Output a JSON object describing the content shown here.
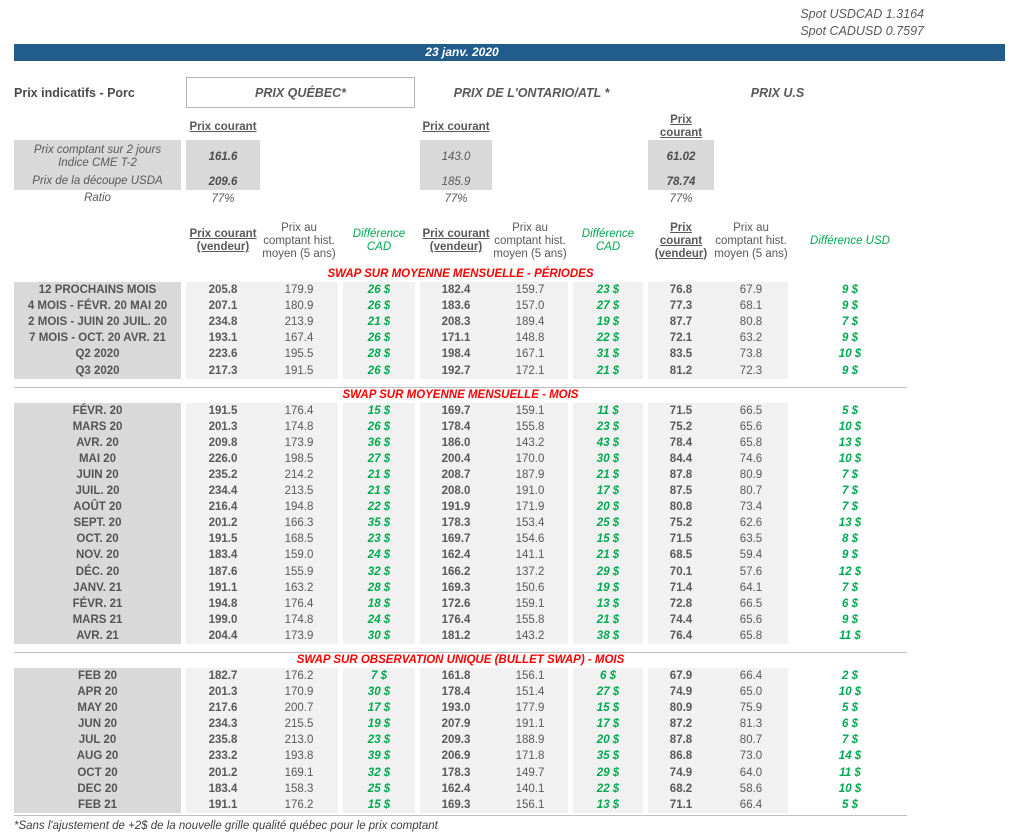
{
  "spot": {
    "usdcad": "Spot USDCAD 1.3164",
    "cadusd": "Spot CADUSD 0.7597"
  },
  "banner_date": "23 janv. 2020",
  "page_title": "Prix indicatifs - Porc",
  "region_titles": {
    "quebec": "PRIX QUÉBEC*",
    "ontario": "PRIX DE L'ONTARIO/ATL *",
    "us": "PRIX U.S"
  },
  "courant_header": "Prix courant",
  "spot_table": {
    "row1_label_line1": "Prix comptant sur 2 jours",
    "row1_label_line2": "Indice CME T-2",
    "row1": {
      "qc": "161.6",
      "on": "143.0",
      "us": "61.02"
    },
    "row2_label": "Prix de la découpe USDA",
    "row2": {
      "qc": "209.6",
      "on": "185.9",
      "us": "78.74"
    },
    "row3_label": "Ratio",
    "row3": {
      "qc": "77%",
      "on": "77%",
      "us": "77%"
    }
  },
  "column_headers": {
    "prix_courant_vendeur": "Prix courant (vendeur)",
    "prix_hist": "Prix au comptant hist. moyen (5 ans)",
    "difference_cad": "Différence CAD",
    "difference_usd": "Différence USD"
  },
  "colors": {
    "banner_blue": "#215C8C",
    "diff_green": "#00A94F",
    "section_red": "#FF0000",
    "label_gray": "#D9D9D9",
    "band_gray": "#F1F1F1"
  },
  "sections": [
    {
      "title": "SWAP SUR MOYENNE MENSUELLE - PÉRIODES",
      "rows": [
        [
          "12 PROCHAINS MOIS",
          "205.8",
          "179.9",
          "26 $",
          "182.4",
          "159.7",
          "23 $",
          "76.8",
          "67.9",
          "9 $"
        ],
        [
          "4 MOIS - FÉVR. 20 MAI 20",
          "207.1",
          "180.9",
          "26 $",
          "183.6",
          "157.0",
          "27 $",
          "77.3",
          "68.1",
          "9 $"
        ],
        [
          "2 MOIS - JUIN 20 JUIL. 20",
          "234.8",
          "213.9",
          "21 $",
          "208.3",
          "189.4",
          "19 $",
          "87.7",
          "80.8",
          "7 $"
        ],
        [
          "7 MOIS - OCT. 20 AVR. 21",
          "193.1",
          "167.4",
          "26 $",
          "171.1",
          "148.8",
          "22 $",
          "72.1",
          "63.2",
          "9 $"
        ],
        [
          "Q2 2020",
          "223.6",
          "195.5",
          "28 $",
          "198.4",
          "167.1",
          "31 $",
          "83.5",
          "73.8",
          "10 $"
        ],
        [
          "Q3 2020",
          "217.3",
          "191.5",
          "26 $",
          "192.7",
          "172.1",
          "21 $",
          "81.2",
          "72.3",
          "9 $"
        ]
      ]
    },
    {
      "title": "SWAP SUR MOYENNE MENSUELLE - MOIS",
      "rows": [
        [
          "FÉVR. 20",
          "191.5",
          "176.4",
          "15 $",
          "169.7",
          "159.1",
          "11 $",
          "71.5",
          "66.5",
          "5 $"
        ],
        [
          "MARS 20",
          "201.3",
          "174.8",
          "26 $",
          "178.4",
          "155.8",
          "23 $",
          "75.2",
          "65.6",
          "10 $"
        ],
        [
          "AVR. 20",
          "209.8",
          "173.9",
          "36 $",
          "186.0",
          "143.2",
          "43 $",
          "78.4",
          "65.8",
          "13 $"
        ],
        [
          "MAI 20",
          "226.0",
          "198.5",
          "27 $",
          "200.4",
          "170.0",
          "30 $",
          "84.4",
          "74.6",
          "10 $"
        ],
        [
          "JUIN 20",
          "235.2",
          "214.2",
          "21 $",
          "208.7",
          "187.9",
          "21 $",
          "87.8",
          "80.9",
          "7 $"
        ],
        [
          "JUIL. 20",
          "234.4",
          "213.5",
          "21 $",
          "208.0",
          "191.0",
          "17 $",
          "87.5",
          "80.7",
          "7 $"
        ],
        [
          "AOÛT 20",
          "216.4",
          "194.8",
          "22 $",
          "191.9",
          "171.9",
          "20 $",
          "80.8",
          "73.4",
          "7 $"
        ],
        [
          "SEPT. 20",
          "201.2",
          "166.3",
          "35 $",
          "178.3",
          "153.4",
          "25 $",
          "75.2",
          "62.6",
          "13 $"
        ],
        [
          "OCT. 20",
          "191.5",
          "168.5",
          "23 $",
          "169.7",
          "154.6",
          "15 $",
          "71.5",
          "63.5",
          "8 $"
        ],
        [
          "NOV. 20",
          "183.4",
          "159.0",
          "24 $",
          "162.4",
          "141.1",
          "21 $",
          "68.5",
          "59.4",
          "9 $"
        ],
        [
          "DÉC. 20",
          "187.6",
          "155.9",
          "32 $",
          "166.2",
          "137.2",
          "29 $",
          "70.1",
          "57.6",
          "12 $"
        ],
        [
          "JANV. 21",
          "191.1",
          "163.2",
          "28 $",
          "169.3",
          "150.6",
          "19 $",
          "71.4",
          "64.1",
          "7 $"
        ],
        [
          "FÉVR. 21",
          "194.8",
          "176.4",
          "18 $",
          "172.6",
          "159.1",
          "13 $",
          "72.8",
          "66.5",
          "6 $"
        ],
        [
          "MARS 21",
          "199.0",
          "174.8",
          "24 $",
          "176.4",
          "155.8",
          "21 $",
          "74.4",
          "65.6",
          "9 $"
        ],
        [
          "AVR. 21",
          "204.4",
          "173.9",
          "30 $",
          "181.2",
          "143.2",
          "38 $",
          "76.4",
          "65.8",
          "11 $"
        ]
      ]
    },
    {
      "title": "SWAP SUR OBSERVATION UNIQUE (BULLET SWAP) - MOIS",
      "rows": [
        [
          "FEB 20",
          "182.7",
          "176.2",
          "7 $",
          "161.8",
          "156.1",
          "6 $",
          "67.9",
          "66.4",
          "2 $"
        ],
        [
          "APR 20",
          "201.3",
          "170.9",
          "30 $",
          "178.4",
          "151.4",
          "27 $",
          "74.9",
          "65.0",
          "10 $"
        ],
        [
          "MAY 20",
          "217.6",
          "200.7",
          "17 $",
          "193.0",
          "177.9",
          "15 $",
          "80.9",
          "75.9",
          "5 $"
        ],
        [
          "JUN 20",
          "234.3",
          "215.5",
          "19 $",
          "207.9",
          "191.1",
          "17 $",
          "87.2",
          "81.3",
          "6 $"
        ],
        [
          "JUL 20",
          "235.8",
          "213.0",
          "23 $",
          "209.3",
          "188.9",
          "20 $",
          "87.8",
          "80.7",
          "7 $"
        ],
        [
          "AUG 20",
          "233.2",
          "193.8",
          "39 $",
          "206.9",
          "171.8",
          "35 $",
          "86.8",
          "73.0",
          "14 $"
        ],
        [
          "OCT 20",
          "201.2",
          "169.1",
          "32 $",
          "178.3",
          "149.7",
          "29 $",
          "74.9",
          "64.0",
          "11 $"
        ],
        [
          "DEC 20",
          "183.4",
          "158.3",
          "25 $",
          "162.4",
          "140.1",
          "22 $",
          "68.2",
          "58.6",
          "10 $"
        ],
        [
          "FEB 21",
          "191.1",
          "176.2",
          "15 $",
          "169.3",
          "156.1",
          "13 $",
          "71.1",
          "66.4",
          "5 $"
        ]
      ]
    }
  ],
  "footnote": "*Sans l'ajustement de +2$ de la nouvelle grille qualité québec pour le prix comptant"
}
